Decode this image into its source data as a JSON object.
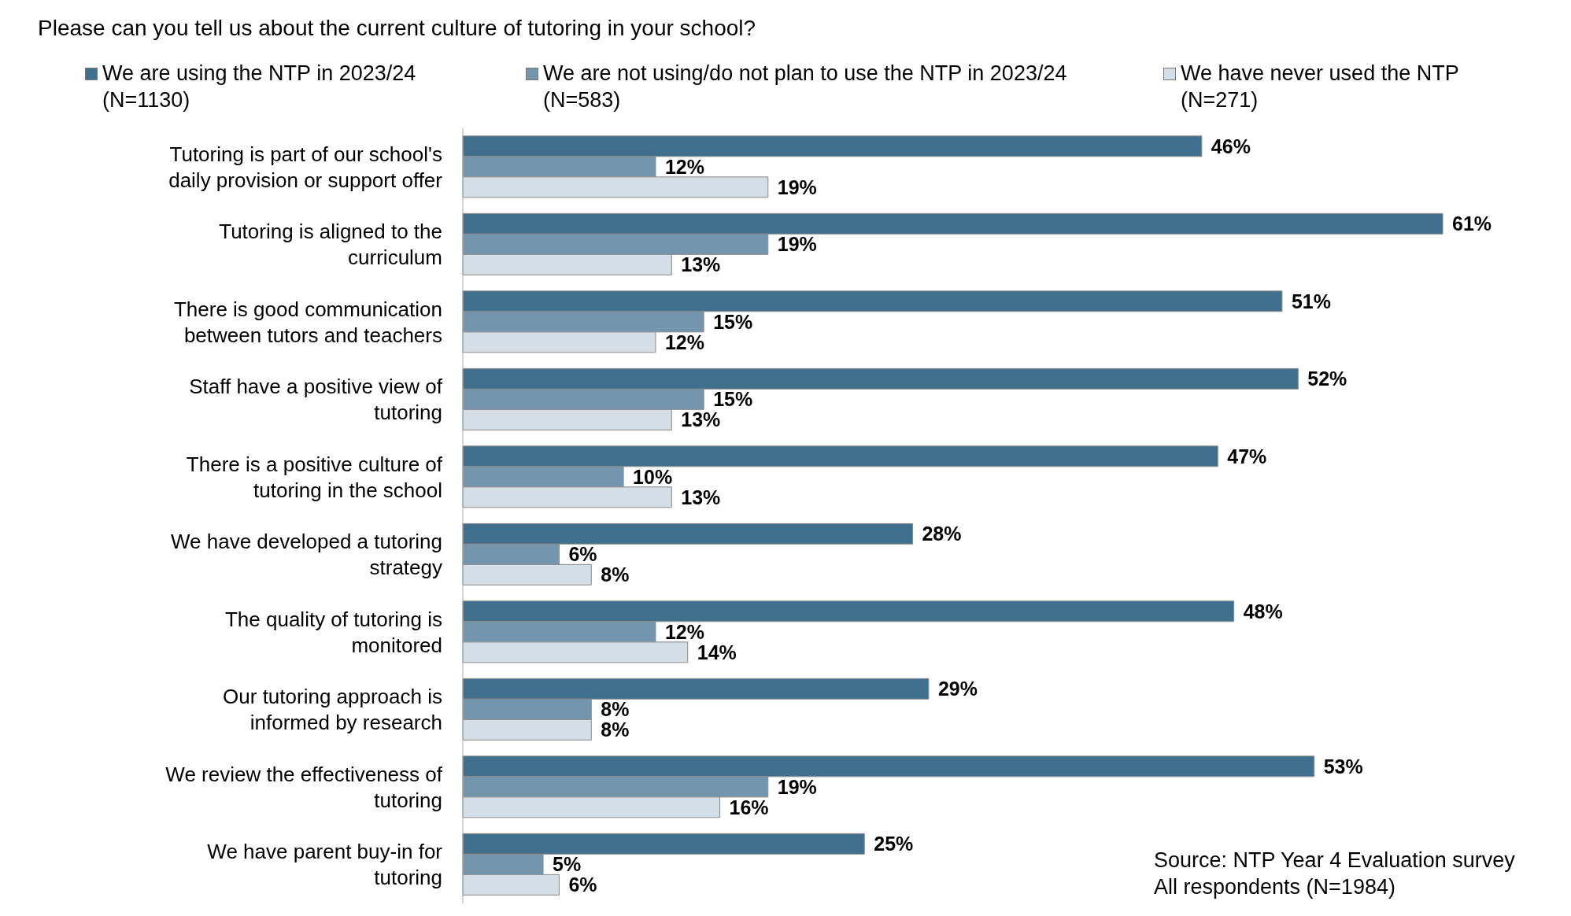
{
  "chart_data": {
    "type": "bar",
    "orientation": "horizontal",
    "title": "Please can you tell us about the current culture of tutoring in your school?",
    "categories": [
      "Tutoring is part of our school's daily provision or support offer",
      "Tutoring is aligned to the curriculum",
      "There is good communication between tutors and teachers",
      "Staff have a positive view of tutoring",
      "There is a positive culture of tutoring in the school",
      "We have developed a tutoring strategy",
      "The quality of tutoring is monitored",
      "Our tutoring approach is informed by research",
      "We review the effectiveness of tutoring",
      "We have parent buy-in for tutoring"
    ],
    "series": [
      {
        "name": "We are using the NTP in 2023/24 (N=1130)",
        "color": "#41708f",
        "values": [
          46,
          61,
          51,
          52,
          47,
          28,
          48,
          29,
          53,
          25
        ],
        "value_labels": [
          "46%",
          "61%",
          "51%",
          "52%",
          "47%",
          "28%",
          "48%",
          "29%",
          "53%",
          "25%"
        ]
      },
      {
        "name": "We are not using/do not plan to use the NTP in 2023/24 (N=583)",
        "color": "#7395ae",
        "values": [
          12,
          19,
          15,
          15,
          10,
          6,
          12,
          8,
          19,
          5
        ],
        "value_labels": [
          "12%",
          "19%",
          "15%",
          "15%",
          "10%",
          "6%",
          "12%",
          "8%",
          "19%",
          "5%"
        ]
      },
      {
        "name": "We have never used the NTP (N=271)",
        "color": "#d3dee6",
        "values": [
          19,
          13,
          12,
          13,
          13,
          8,
          14,
          8,
          16,
          6
        ],
        "value_labels": [
          "19%",
          "13%",
          "12%",
          "13%",
          "13%",
          "8%",
          "14%",
          "8%",
          "16%",
          "6%"
        ]
      }
    ],
    "legend": "top",
    "annotations": [
      "Source: NTP Year 4 Evaluation survey",
      "All respondents (N=1984)"
    ]
  }
}
